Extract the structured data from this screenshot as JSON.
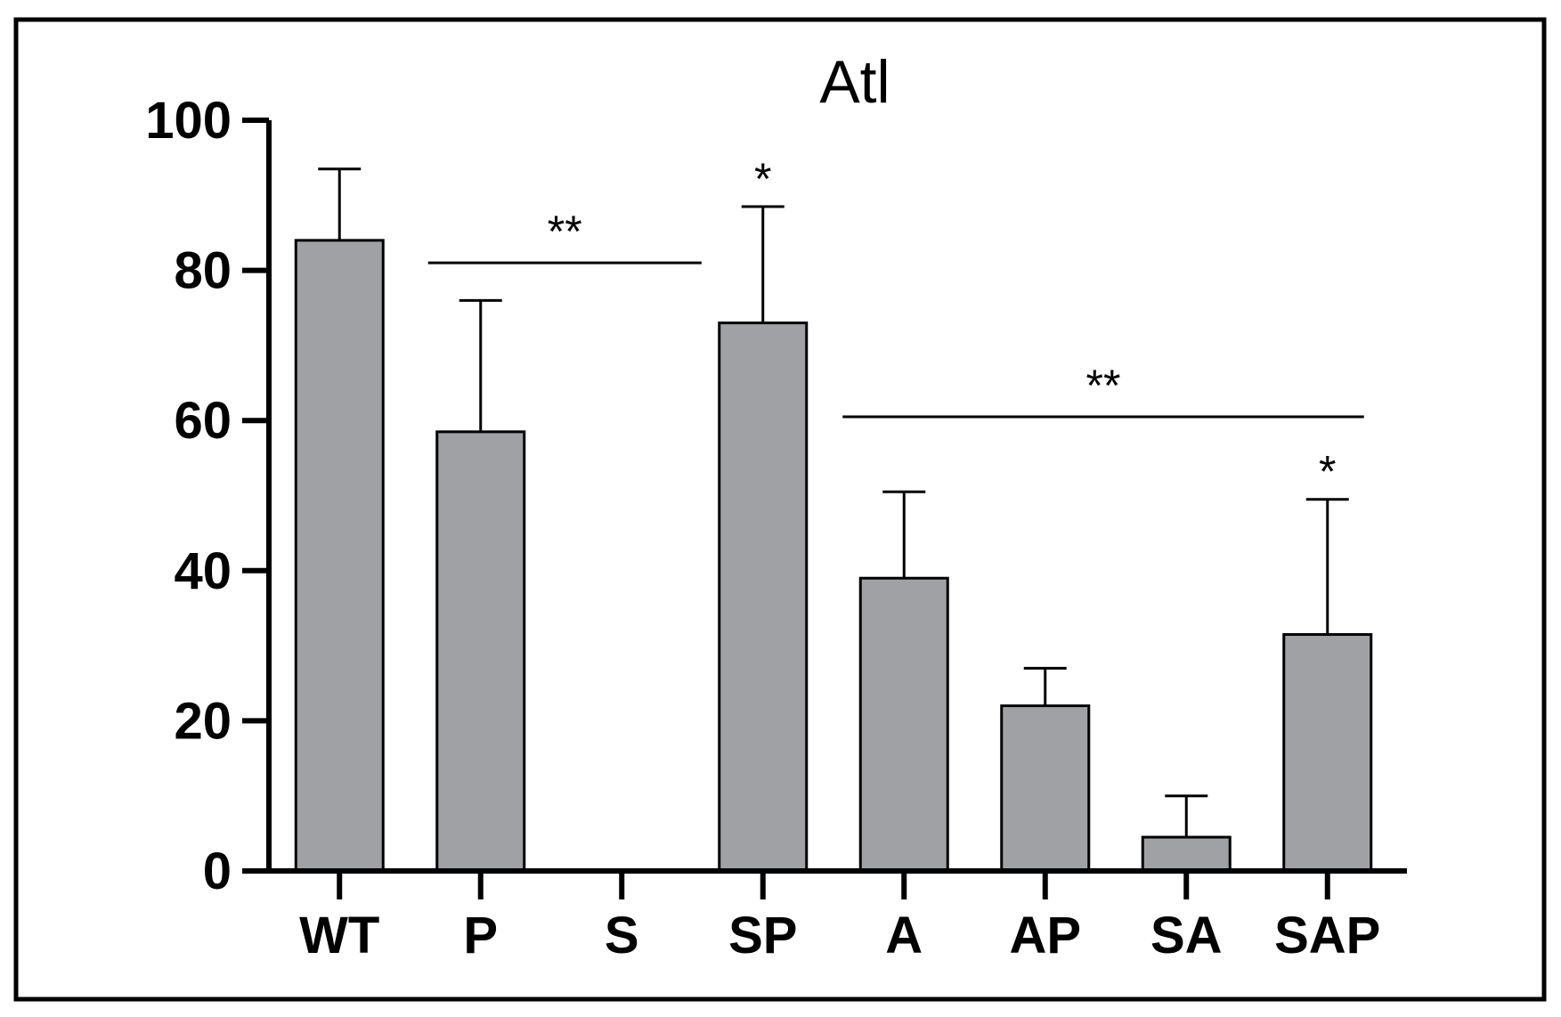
{
  "chart_data": {
    "type": "bar",
    "title": "Atl",
    "xlabel": "",
    "ylabel": "",
    "ylim": [
      0,
      100
    ],
    "yticks": [
      "0",
      "20",
      "40",
      "60",
      "80",
      "100"
    ],
    "categories": [
      "WT",
      "P",
      "S",
      "SP",
      "A",
      "AP",
      "SA",
      "SAP"
    ],
    "values": [
      84,
      58.5,
      0,
      73,
      39,
      22,
      4.5,
      31.5
    ],
    "errors": [
      9.5,
      17.5,
      0,
      15.5,
      11.5,
      5,
      5.5,
      18
    ],
    "bar_color": "#a0a1a5",
    "bar_edge_color": "#000000",
    "frame_color": "#000000",
    "significance_markers": [
      {
        "label": "*",
        "category": "SP"
      },
      {
        "label": "*",
        "category": "SAP"
      }
    ],
    "significance_brackets": [
      {
        "label": "**",
        "from": "P",
        "to": "SP",
        "y": 81
      },
      {
        "label": "**",
        "from": "A",
        "to": "SAP",
        "y": 60.5
      }
    ]
  }
}
